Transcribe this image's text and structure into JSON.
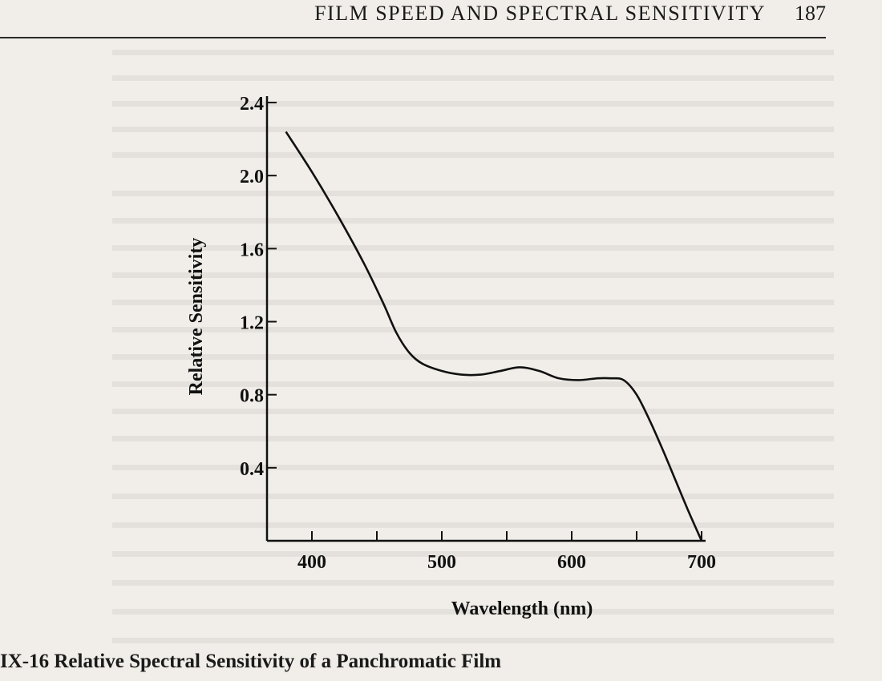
{
  "header": {
    "title": "FILM SPEED AND SPECTRAL SENSITIVITY",
    "page_number": "187"
  },
  "caption": "IX-16 Relative Spectral Sensitivity of a Panchromatic Film",
  "colors": {
    "paper": "#f1eee9",
    "ink": "#111111"
  },
  "chart_data": {
    "type": "line",
    "title": "",
    "xlabel": "Wavelength (nm)",
    "ylabel": "Relative Sensitivity",
    "xlim": [
      380,
      705
    ],
    "ylim": [
      0,
      2.4
    ],
    "x_ticks": [
      400,
      450,
      500,
      550,
      600,
      650,
      700
    ],
    "x_tick_labels": [
      "400",
      "",
      "500",
      "",
      "600",
      "",
      "700"
    ],
    "y_ticks": [
      0.4,
      0.8,
      1.2,
      1.6,
      2.0,
      2.4
    ],
    "y_tick_labels": [
      "0.4",
      "0.8",
      "1.2",
      "1.6",
      "2.0",
      "2.4"
    ],
    "grid": false,
    "series": [
      {
        "x": [
          380,
          400,
          420,
          440,
          455,
          465,
          475,
          485,
          500,
          515,
          530,
          545,
          560,
          575,
          590,
          605,
          620,
          630,
          640,
          650,
          660,
          670,
          680,
          690,
          700
        ],
        "y": [
          2.24,
          2.02,
          1.78,
          1.52,
          1.3,
          1.14,
          1.03,
          0.97,
          0.93,
          0.91,
          0.91,
          0.93,
          0.95,
          0.93,
          0.89,
          0.88,
          0.89,
          0.89,
          0.88,
          0.8,
          0.66,
          0.5,
          0.33,
          0.16,
          0.0
        ]
      }
    ]
  }
}
